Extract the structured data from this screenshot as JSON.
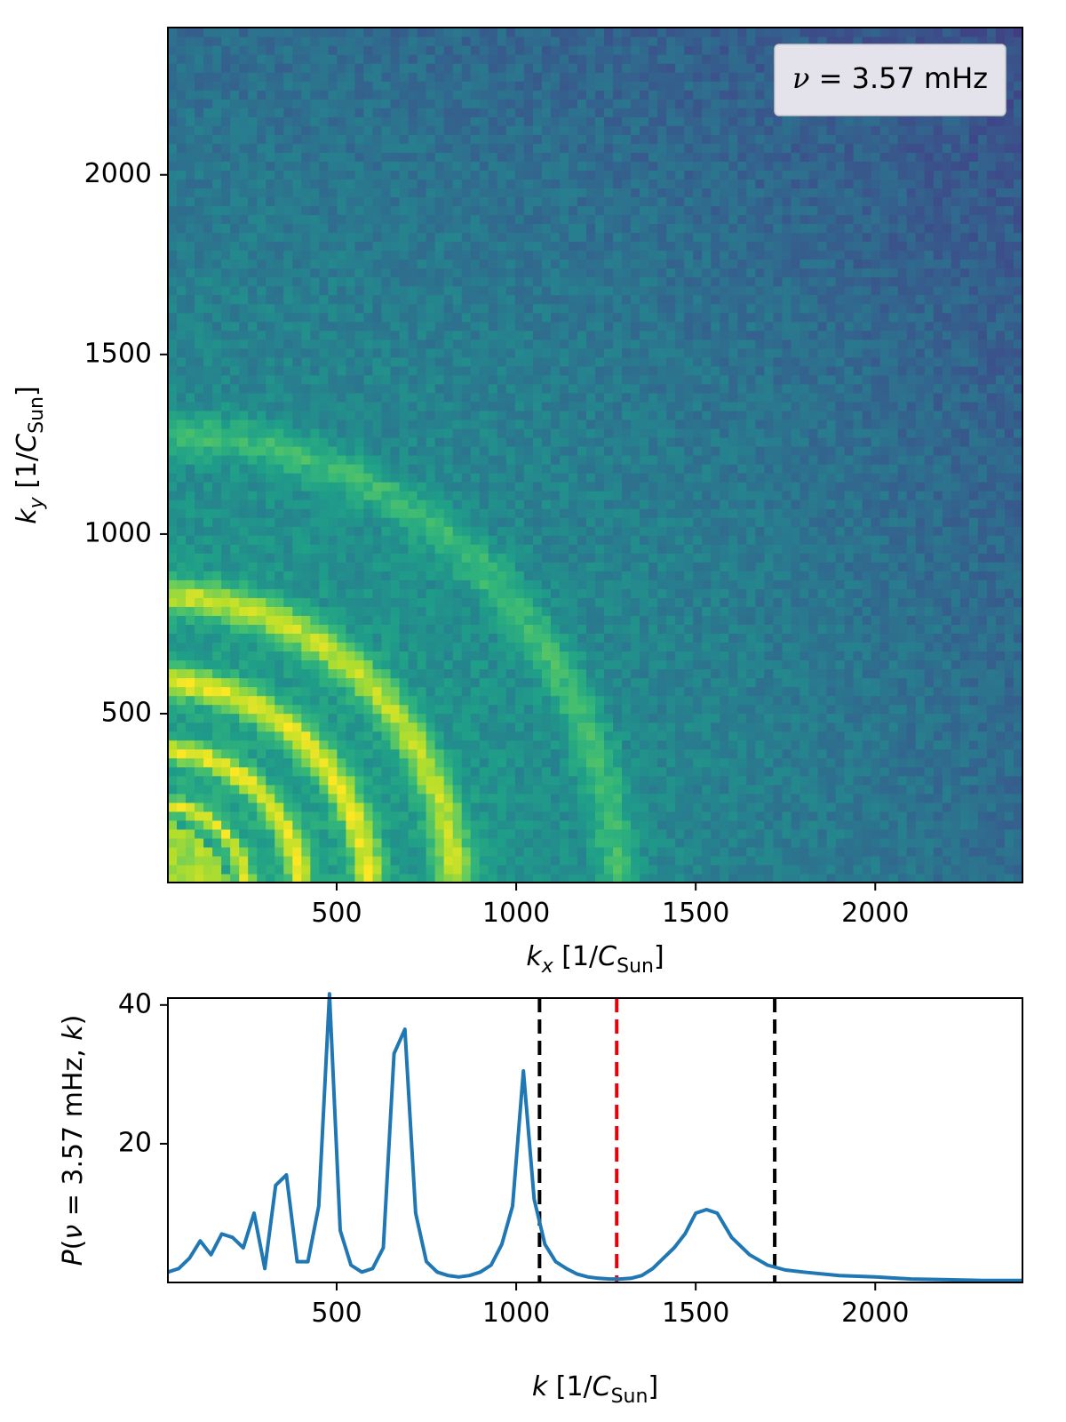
{
  "chart_data": [
    {
      "type": "heatmap",
      "xlabel": "k_x [1/C_Sun]",
      "ylabel": "k_y [1/C_Sun]",
      "xlim": [
        30,
        2410
      ],
      "ylim": [
        30,
        2410
      ],
      "xticks": [
        "500",
        "1000",
        "1500",
        "2000"
      ],
      "yticks": [
        "500",
        "1000",
        "1500",
        "2000"
      ],
      "legend": "ν = 3.57 mHz",
      "legend_position": "upper-right",
      "colormap": "viridis",
      "ring_radii": [
        250,
        400,
        590,
        830,
        1280
      ],
      "ring_amplitudes": [
        0.75,
        0.85,
        0.85,
        0.75,
        0.4
      ]
    },
    {
      "type": "line",
      "xlabel": "k [1/C_Sun]",
      "ylabel": "P(ν = 3.57 mHz, k)",
      "xlim": [
        30,
        2410
      ],
      "ylim": [
        0,
        41
      ],
      "xticks": [
        "500",
        "1000",
        "1500",
        "2000"
      ],
      "yticks": [
        "20",
        "40"
      ],
      "series": [
        {
          "color": "#1f77b4",
          "x": [
            30,
            60,
            90,
            120,
            150,
            180,
            210,
            240,
            270,
            300,
            330,
            360,
            390,
            420,
            450,
            480,
            510,
            540,
            570,
            600,
            630,
            660,
            690,
            720,
            750,
            780,
            810,
            840,
            870,
            900,
            930,
            960,
            990,
            1020,
            1050,
            1080,
            1110,
            1140,
            1170,
            1200,
            1230,
            1260,
            1290,
            1320,
            1350,
            1380,
            1410,
            1440,
            1470,
            1500,
            1530,
            1560,
            1600,
            1650,
            1700,
            1750,
            1800,
            1900,
            2000,
            2100,
            2200,
            2300,
            2410
          ],
          "y": [
            1.5,
            2.0,
            3.5,
            6.0,
            4.0,
            7.0,
            6.5,
            5.0,
            10.0,
            2.0,
            14.0,
            15.5,
            3.0,
            3.0,
            11.0,
            42.0,
            7.5,
            2.5,
            1.5,
            2.0,
            5.0,
            33.0,
            36.5,
            10.0,
            3.0,
            1.5,
            1.0,
            0.8,
            1.0,
            1.5,
            2.5,
            5.5,
            11.0,
            30.5,
            12.0,
            5.5,
            3.0,
            2.0,
            1.2,
            0.8,
            0.6,
            0.5,
            0.5,
            0.6,
            1.0,
            2.0,
            3.5,
            5.0,
            7.0,
            10.0,
            10.5,
            10.0,
            6.5,
            4.0,
            2.5,
            1.8,
            1.5,
            1.0,
            0.8,
            0.5,
            0.4,
            0.3,
            0.3
          ]
        }
      ],
      "vlines": [
        {
          "x": 1065,
          "color": "#000000"
        },
        {
          "x": 1280,
          "color": "#e8000b"
        },
        {
          "x": 1720,
          "color": "#000000"
        }
      ]
    }
  ]
}
